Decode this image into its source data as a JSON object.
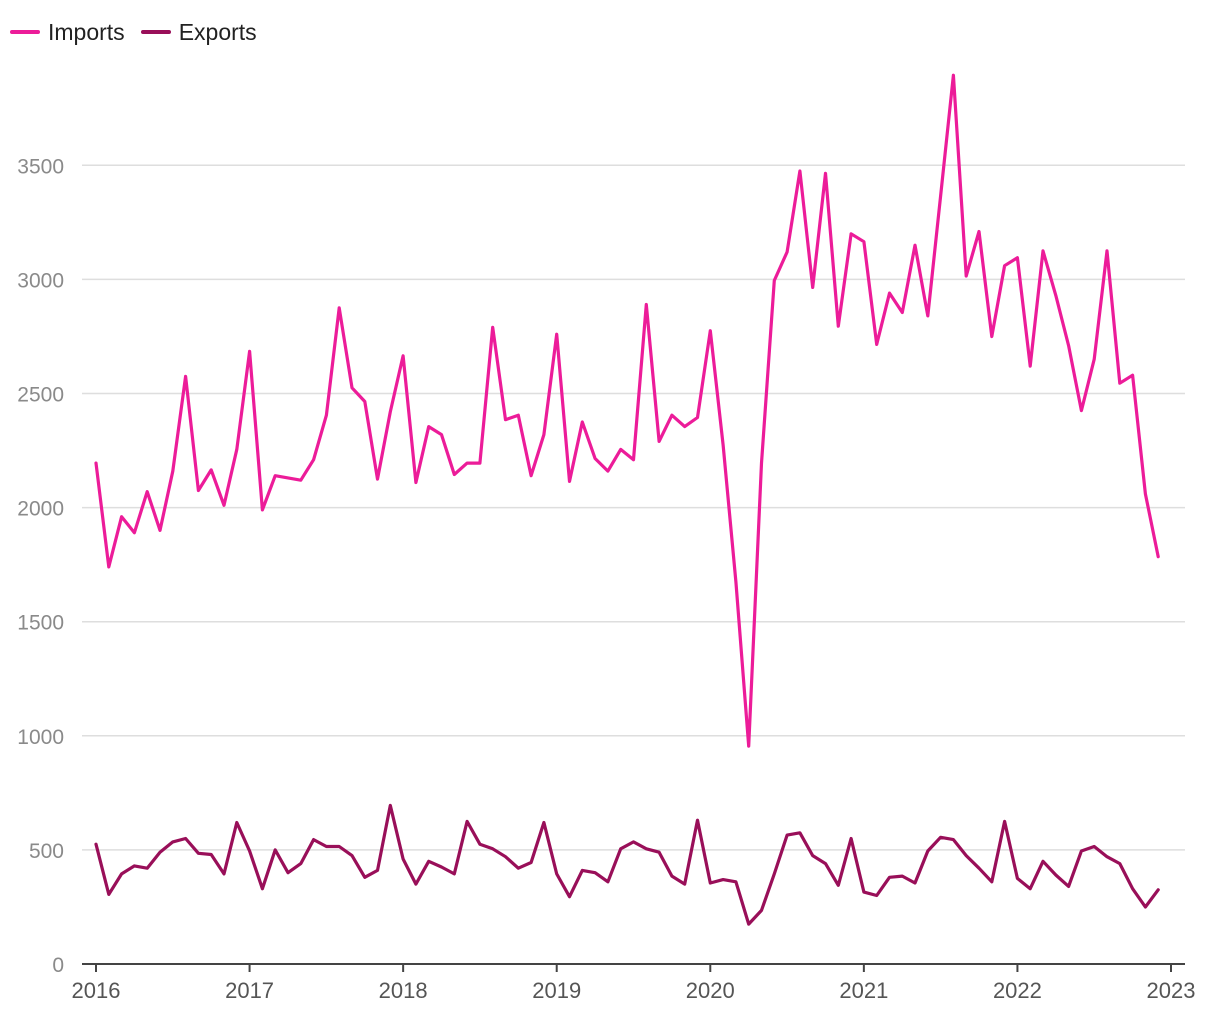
{
  "chart_data": {
    "type": "line",
    "title": "",
    "xlabel": "",
    "ylabel": "",
    "x_start": "2016-01",
    "x_ticks": [
      "2016",
      "2017",
      "2018",
      "2019",
      "2020",
      "2021",
      "2022",
      "2023"
    ],
    "y_ticks": [
      0,
      500,
      1000,
      1500,
      2000,
      2500,
      3000,
      3500
    ],
    "ylim": [
      0,
      3900
    ],
    "grid": true,
    "legend_position": "top-left",
    "series": [
      {
        "name": "Imports",
        "color": "#ec1c99",
        "values": [
          2195,
          1740,
          1960,
          1890,
          2070,
          1900,
          2160,
          2575,
          2075,
          2165,
          2010,
          2255,
          2685,
          1990,
          2140,
          2130,
          2120,
          2210,
          2405,
          2875,
          2525,
          2465,
          2125,
          2420,
          2665,
          2110,
          2355,
          2320,
          2145,
          2195,
          2195,
          2790,
          2385,
          2405,
          2140,
          2320,
          2760,
          2115,
          2375,
          2215,
          2160,
          2255,
          2210,
          2890,
          2290,
          2405,
          2355,
          2395,
          2775,
          2275,
          1675,
          955,
          2195,
          2995,
          3120,
          3475,
          2965,
          3465,
          2795,
          3200,
          3165,
          2715,
          2940,
          2855,
          3150,
          2840,
          3365,
          3895,
          3015,
          3210,
          2750,
          3060,
          3095,
          2620,
          3125,
          2930,
          2710,
          2425,
          2650,
          3125,
          2545,
          2580,
          2060,
          1785
        ]
      },
      {
        "name": "Exports",
        "color": "#990f59",
        "values": [
          525,
          305,
          395,
          430,
          420,
          490,
          535,
          550,
          485,
          480,
          395,
          620,
          495,
          330,
          500,
          400,
          440,
          545,
          515,
          515,
          475,
          380,
          410,
          695,
          460,
          350,
          450,
          425,
          395,
          625,
          525,
          505,
          470,
          420,
          445,
          620,
          395,
          295,
          410,
          400,
          360,
          505,
          535,
          505,
          490,
          385,
          350,
          630,
          355,
          370,
          360,
          175,
          235,
          395,
          565,
          575,
          475,
          440,
          345,
          550,
          315,
          300,
          380,
          385,
          355,
          495,
          555,
          545,
          475,
          420,
          360,
          625,
          375,
          330,
          450,
          390,
          340,
          495,
          515,
          470,
          440,
          330,
          250,
          325
        ]
      }
    ]
  }
}
